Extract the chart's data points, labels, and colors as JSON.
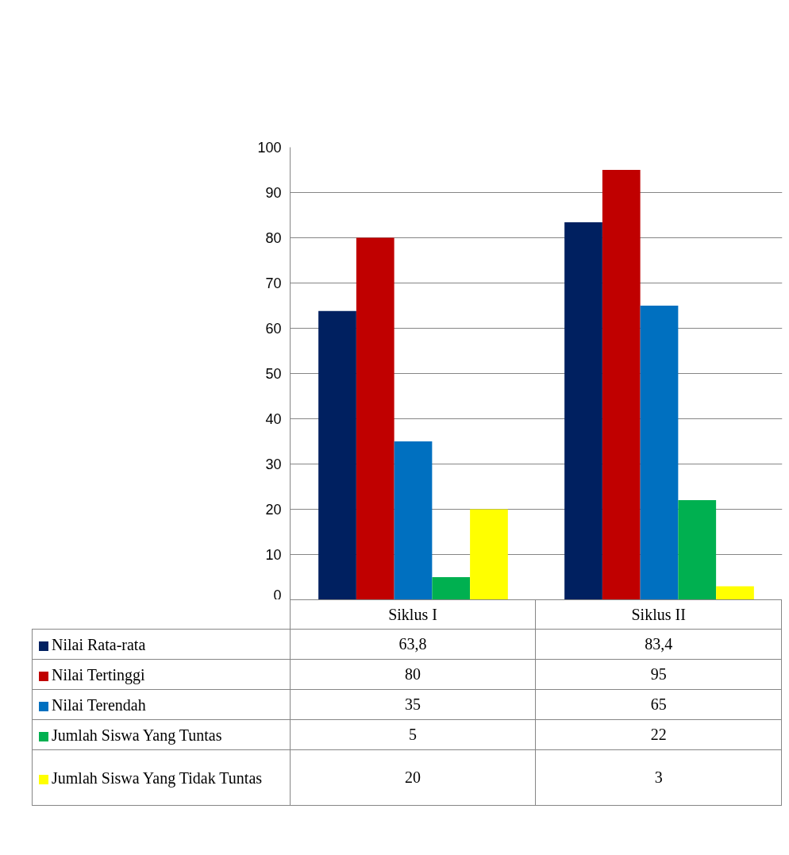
{
  "chart_data": {
    "type": "bar",
    "categories": [
      "Siklus I",
      "Siklus II"
    ],
    "series": [
      {
        "name": "Nilai Rata-rata",
        "color": "#002060",
        "values": [
          63.8,
          83.4
        ],
        "value_labels": [
          "63,8",
          "83,4"
        ]
      },
      {
        "name": "Nilai Tertinggi",
        "color": "#c00000",
        "values": [
          80,
          95
        ],
        "value_labels": [
          "80",
          "95"
        ]
      },
      {
        "name": "Nilai Terendah",
        "color": "#0070c0",
        "values": [
          35,
          65
        ],
        "value_labels": [
          "35",
          "65"
        ]
      },
      {
        "name": "Jumlah Siswa Yang Tuntas",
        "color": "#00b050",
        "values": [
          5,
          22
        ],
        "value_labels": [
          "5",
          "22"
        ]
      },
      {
        "name": "Jumlah Siswa Yang Tidak Tuntas",
        "color": "#ffff00",
        "values": [
          20,
          3
        ],
        "value_labels": [
          "20",
          "3"
        ]
      }
    ],
    "ylim": [
      0,
      100
    ],
    "yticks": [
      0,
      10,
      20,
      30,
      40,
      50,
      60,
      70,
      80,
      90,
      100
    ],
    "grid": "y",
    "legend": "bottom"
  }
}
